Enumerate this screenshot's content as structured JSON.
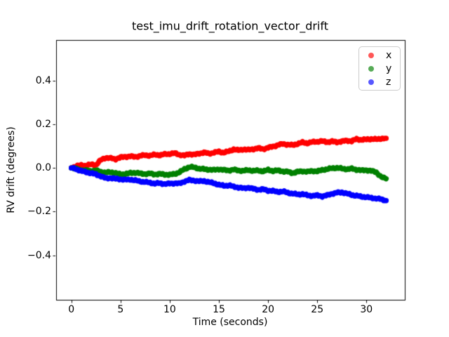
{
  "figure": {
    "title": "test_imu_drift_rotation_vector_drift",
    "background_color": "#ffffff",
    "spine_color": "#000000"
  },
  "chart_data": {
    "type": "scatter",
    "title": "test_imu_drift_rotation_vector_drift",
    "xlabel": "Time (seconds)",
    "ylabel": "RV drift (degrees)",
    "xlim": [
      -1.55,
      33.9
    ],
    "ylim": [
      -0.604,
      0.585
    ],
    "grid": false,
    "xticks": [
      0,
      5,
      10,
      15,
      20,
      25,
      30
    ],
    "xtick_labels": [
      "0",
      "5",
      "10",
      "15",
      "20",
      "25",
      "30"
    ],
    "yticks": [
      0.4,
      0.2,
      0.0,
      -0.2,
      -0.4
    ],
    "ytick_labels": [
      "0.4",
      "0.2",
      "0.0",
      "−0.2",
      "−0.4"
    ],
    "legend": {
      "position": "upper right",
      "entries": [
        "x",
        "y",
        "z"
      ]
    },
    "marker_alpha": 0.66,
    "t": [
      0,
      0.5,
      1,
      1.5,
      2,
      2.5,
      3,
      3.5,
      4,
      4.5,
      5,
      5.5,
      6,
      6.5,
      7,
      7.5,
      8,
      8.5,
      9,
      9.5,
      10,
      10.5,
      11,
      11.5,
      12,
      12.5,
      13,
      13.5,
      14,
      14.5,
      15,
      15.5,
      16,
      16.5,
      17,
      17.5,
      18,
      18.5,
      19,
      19.5,
      20,
      20.5,
      21,
      21.5,
      22,
      22.5,
      23,
      23.5,
      24,
      24.5,
      25,
      25.5,
      26,
      26.5,
      27,
      27.5,
      28,
      28.5,
      29,
      29.5,
      30,
      30.5,
      31,
      31.5,
      32
    ],
    "series": [
      {
        "name": "x",
        "color": "#ff0000",
        "values": [
          0.0,
          0.008,
          0.012,
          0.01,
          0.016,
          0.013,
          0.036,
          0.046,
          0.044,
          0.04,
          0.048,
          0.051,
          0.053,
          0.05,
          0.055,
          0.058,
          0.056,
          0.06,
          0.058,
          0.062,
          0.064,
          0.067,
          0.06,
          0.056,
          0.064,
          0.06,
          0.066,
          0.07,
          0.065,
          0.07,
          0.074,
          0.07,
          0.075,
          0.085,
          0.08,
          0.085,
          0.082,
          0.086,
          0.09,
          0.086,
          0.092,
          0.098,
          0.104,
          0.11,
          0.106,
          0.104,
          0.11,
          0.116,
          0.113,
          0.118,
          0.12,
          0.122,
          0.118,
          0.121,
          0.118,
          0.121,
          0.125,
          0.122,
          0.132,
          0.128,
          0.13,
          0.132,
          0.13,
          0.134,
          0.135
        ]
      },
      {
        "name": "y",
        "color": "#008000",
        "values": [
          0.0,
          -0.004,
          -0.01,
          -0.012,
          -0.014,
          -0.012,
          -0.018,
          -0.022,
          -0.02,
          -0.024,
          -0.03,
          -0.028,
          -0.024,
          -0.022,
          -0.026,
          -0.028,
          -0.026,
          -0.03,
          -0.028,
          -0.03,
          -0.032,
          -0.028,
          -0.02,
          -0.006,
          0.004,
          0.002,
          -0.004,
          -0.006,
          -0.008,
          -0.01,
          -0.006,
          -0.01,
          -0.012,
          -0.008,
          -0.012,
          -0.014,
          -0.01,
          -0.014,
          -0.012,
          -0.016,
          -0.01,
          -0.014,
          -0.012,
          -0.016,
          -0.018,
          -0.024,
          -0.018,
          -0.015,
          -0.018,
          -0.014,
          -0.016,
          -0.01,
          -0.006,
          -0.002,
          0.0,
          -0.004,
          -0.006,
          -0.004,
          -0.008,
          -0.012,
          -0.01,
          -0.014,
          -0.02,
          -0.042,
          -0.05
        ]
      },
      {
        "name": "z",
        "color": "#0000ff",
        "values": [
          0.0,
          -0.006,
          -0.014,
          -0.02,
          -0.024,
          -0.03,
          -0.038,
          -0.048,
          -0.046,
          -0.05,
          -0.052,
          -0.055,
          -0.053,
          -0.058,
          -0.062,
          -0.065,
          -0.068,
          -0.072,
          -0.07,
          -0.074,
          -0.072,
          -0.07,
          -0.072,
          -0.062,
          -0.056,
          -0.058,
          -0.062,
          -0.06,
          -0.066,
          -0.07,
          -0.078,
          -0.082,
          -0.08,
          -0.086,
          -0.09,
          -0.094,
          -0.09,
          -0.096,
          -0.1,
          -0.098,
          -0.104,
          -0.106,
          -0.11,
          -0.108,
          -0.114,
          -0.118,
          -0.122,
          -0.12,
          -0.126,
          -0.128,
          -0.126,
          -0.13,
          -0.126,
          -0.118,
          -0.114,
          -0.112,
          -0.118,
          -0.124,
          -0.128,
          -0.132,
          -0.134,
          -0.138,
          -0.14,
          -0.144,
          -0.15
        ]
      }
    ]
  }
}
